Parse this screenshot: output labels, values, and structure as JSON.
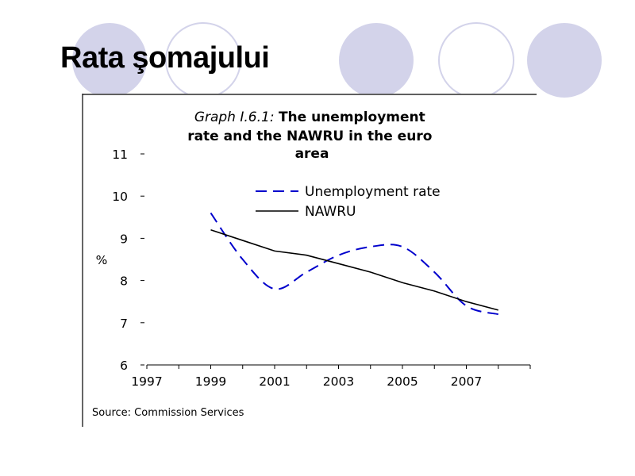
{
  "slide": {
    "title": "Rata şomajului"
  },
  "colors": {
    "circle_fill": "#d3d3ea",
    "circle_stroke": "#d3d3ea",
    "unemployment": "#0000cc",
    "nawru": "#000000"
  },
  "chart_data": {
    "type": "line",
    "title_italic": "Graph I.6.1:",
    "title_line1": "The unemployment",
    "title_line2": "rate and the NAWRU in the euro",
    "title_line3": "area",
    "ylabel": "%",
    "ylim": [
      6,
      11
    ],
    "yticks": [
      6,
      7,
      8,
      9,
      10,
      11
    ],
    "xlim": [
      1997,
      2009
    ],
    "xtick_labels": [
      1997,
      1999,
      2001,
      2003,
      2005,
      2007
    ],
    "grid": false,
    "legend_position": "top-right",
    "series": [
      {
        "name": "Unemployment rate",
        "style": "dashed",
        "x": [
          1999,
          2000,
          2001,
          2002,
          2003,
          2004,
          2005,
          2006,
          2007,
          2008
        ],
        "y": [
          9.6,
          8.5,
          7.8,
          8.2,
          8.6,
          8.8,
          8.8,
          8.2,
          7.4,
          7.2
        ]
      },
      {
        "name": "NAWRU",
        "style": "solid",
        "x": [
          1999,
          2000,
          2001,
          2002,
          2003,
          2004,
          2005,
          2006,
          2007,
          2008
        ],
        "y": [
          9.2,
          8.95,
          8.7,
          8.6,
          8.4,
          8.2,
          7.95,
          7.75,
          7.5,
          7.3
        ]
      }
    ],
    "source": "Source: Commission Services"
  }
}
